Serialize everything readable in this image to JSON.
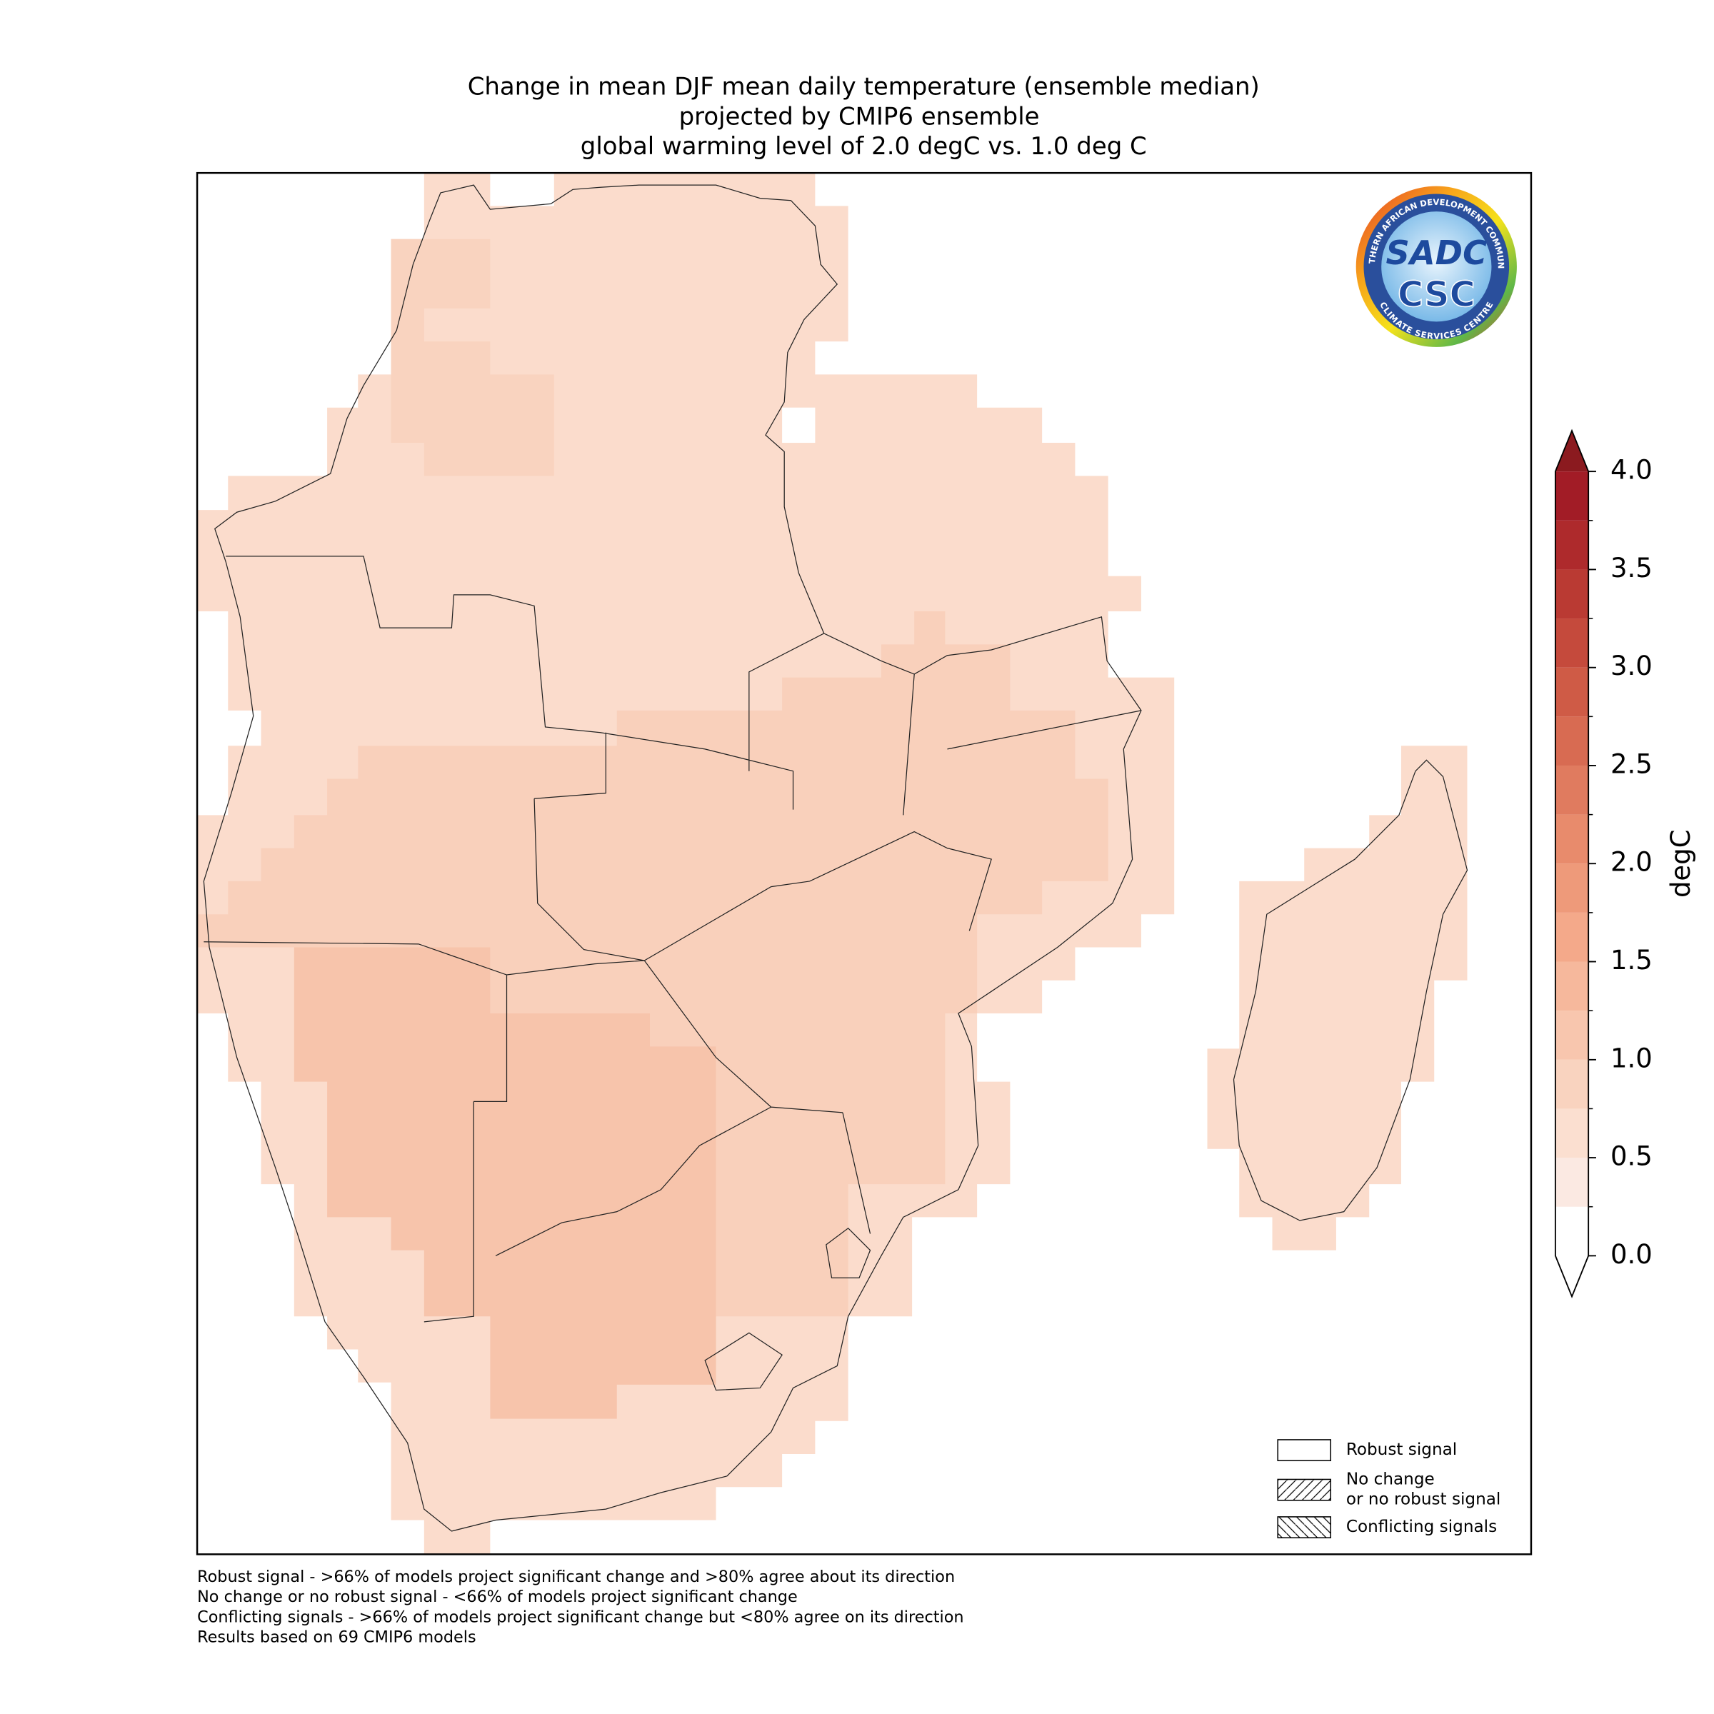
{
  "title": [
    "Change in mean DJF mean daily temperature (ensemble median)",
    "projected by CMIP6 ensemble",
    "global warming level of 2.0 degC vs. 1.0 deg C"
  ],
  "colorbar": {
    "label": "degC",
    "lim": [
      0,
      4
    ],
    "ticks": [
      {
        "value": 0,
        "label": "0.0"
      },
      {
        "value": 0.5,
        "label": "0.5"
      },
      {
        "value": 1,
        "label": "1.0"
      },
      {
        "value": 1.5,
        "label": "1.5"
      },
      {
        "value": 2,
        "label": "2.0"
      },
      {
        "value": 2.5,
        "label": "2.5"
      },
      {
        "value": 3,
        "label": "3.0"
      },
      {
        "value": 3.5,
        "label": "3.5"
      },
      {
        "value": 4,
        "label": "4.0"
      }
    ],
    "levels": [
      0,
      0.25,
      0.5,
      0.75,
      1,
      1.25,
      1.5,
      1.75,
      2,
      2.25,
      2.5,
      2.75,
      3,
      3.25,
      3.5,
      3.75,
      4
    ],
    "colors": [
      "#ffffff",
      "#fbe9e2",
      "#fbdfd0",
      "#f9d3bf",
      "#f8c6ae",
      "#f6b89c",
      "#f4a98a",
      "#ee9a7a",
      "#e88b6c",
      "#e07b5f",
      "#d86b52",
      "#cf5b46",
      "#c54a3c",
      "#ba3a33",
      "#ae2a2c",
      "#a21c26"
    ],
    "under_color": "#ffffff",
    "over_color": "#8b1a1f"
  },
  "legend": [
    {
      "label": [
        "Robust signal"
      ],
      "hatch": "none"
    },
    {
      "label": [
        "No change",
        "or no robust signal"
      ],
      "hatch": "forward"
    },
    {
      "label": [
        "Conflicting signals"
      ],
      "hatch": "back"
    }
  ],
  "footnotes": [
    "Robust signal - >66% of models project significant change and >80% agree about its direction",
    "No change or no robust signal - <66% of models project significant change",
    "Conflicting signals - >66% of models project significant change but <80% agree on its direction",
    "Results based on 69 CMIP6 models"
  ],
  "logo": {
    "top": "SADC",
    "bottom": "CSC",
    "ring_top": "SOUTHERN AFRICAN DEVELOPMENT COMMUNITY",
    "ring_bottom": "CLIMATE SERVICES CENTRE"
  }
}
